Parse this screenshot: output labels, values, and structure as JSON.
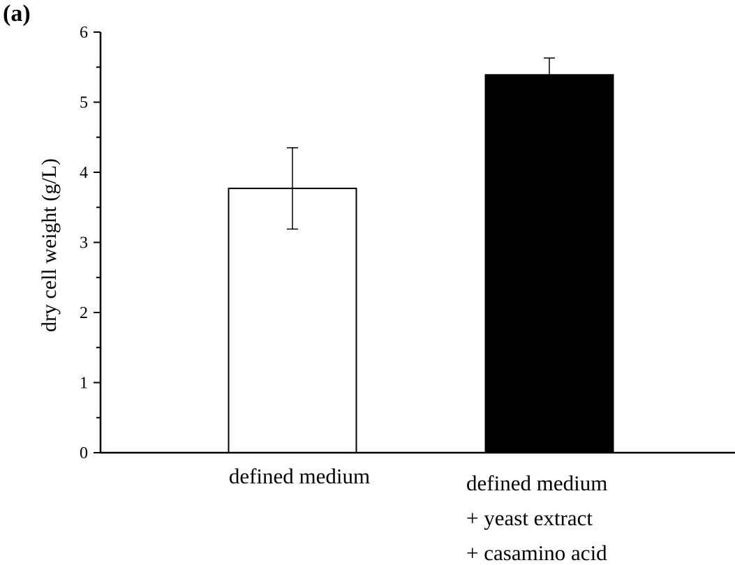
{
  "panel_label": "(a)",
  "chart_data": {
    "type": "bar",
    "title": "",
    "xlabel": "",
    "ylabel": "dry cell weight (g/L)",
    "ylim": [
      0,
      6
    ],
    "yticks": [
      "0",
      "1",
      "2",
      "3",
      "4",
      "5",
      "6"
    ],
    "grid": false,
    "categories": [
      [
        "defined medium"
      ],
      [
        "defined medium",
        "+ yeast extract",
        "+ casamino acid"
      ]
    ],
    "values": [
      3.77,
      5.39
    ],
    "errors": [
      0.58,
      0.24
    ],
    "colors": {
      "bar_fills": [
        "#ffffff",
        "#000000"
      ],
      "stroke": "#000000"
    }
  }
}
